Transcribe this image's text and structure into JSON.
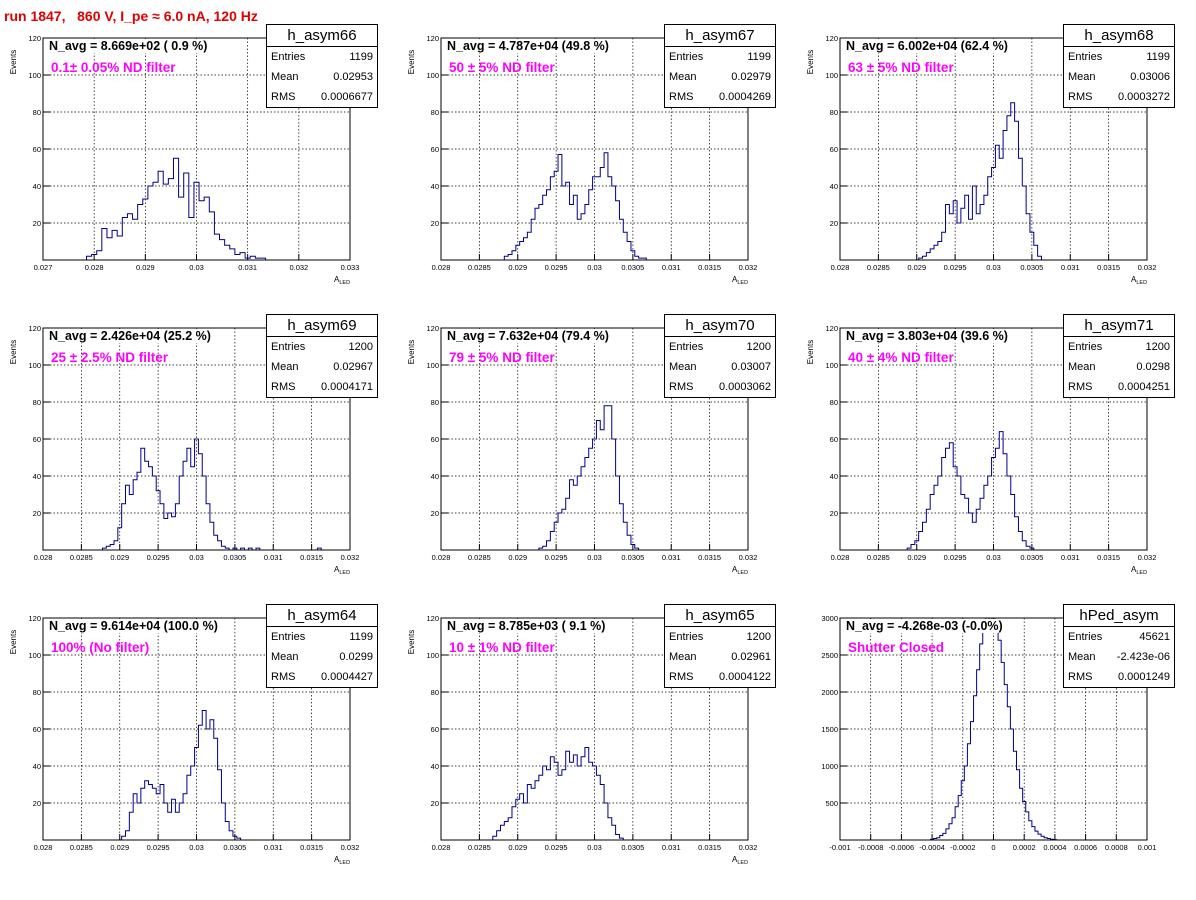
{
  "page_title": "run 1847,   860 V, I_pe ≈ 6.0 nA, 120 Hz",
  "stat_labels": {
    "entries": "Entries",
    "mean": "Mean",
    "rms": "RMS"
  },
  "panels": [
    {
      "hist_name": "h_asym66",
      "navg": "N_avg = 8.669e+02 ( 0.9 %)",
      "filter": "0.1± 0.05% ND filter",
      "entries": "1199",
      "mean": "0.02953",
      "rms": "0.0006677",
      "ylabel": "Events",
      "xlabel": "A",
      "xlabel_sub": "LED",
      "x_ticks": [
        "0.027",
        "0.028",
        "0.029",
        "0.03",
        "0.031",
        "0.032",
        "0.033"
      ],
      "y_ticks": [
        "20",
        "40",
        "60",
        "80",
        "100",
        "120"
      ]
    },
    {
      "hist_name": "h_asym67",
      "navg": "N_avg = 4.787e+04 (49.8 %)",
      "filter": "50 ± 5% ND filter",
      "entries": "1199",
      "mean": "0.02979",
      "rms": "0.0004269",
      "ylabel": "Events",
      "xlabel": "A",
      "xlabel_sub": "LED",
      "x_ticks": [
        "0.028",
        "0.0285",
        "0.029",
        "0.0295",
        "0.03",
        "0.0305",
        "0.031",
        "0.0315",
        "0.032"
      ],
      "y_ticks": [
        "20",
        "40",
        "60",
        "80",
        "100",
        "120"
      ]
    },
    {
      "hist_name": "h_asym68",
      "navg": "N_avg = 6.002e+04 (62.4 %)",
      "filter": "63 ± 5% ND filter",
      "entries": "1199",
      "mean": "0.03006",
      "rms": "0.0003272",
      "ylabel": "Events",
      "xlabel": "A",
      "xlabel_sub": "LED",
      "x_ticks": [
        "0.028",
        "0.0285",
        "0.029",
        "0.0295",
        "0.03",
        "0.0305",
        "0.031",
        "0.0315",
        "0.032"
      ],
      "y_ticks": [
        "20",
        "40",
        "60",
        "80",
        "100",
        "120"
      ]
    },
    {
      "hist_name": "h_asym69",
      "navg": "N_avg = 2.426e+04 (25.2 %)",
      "filter": "25 ± 2.5% ND filter",
      "entries": "1200",
      "mean": "0.02967",
      "rms": "0.0004171",
      "ylabel": "Events",
      "xlabel": "A",
      "xlabel_sub": "LED",
      "x_ticks": [
        "0.028",
        "0.0285",
        "0.029",
        "0.0295",
        "0.03",
        "0.0305",
        "0.031",
        "0.0315",
        "0.032"
      ],
      "y_ticks": [
        "20",
        "40",
        "60",
        "80",
        "100",
        "120"
      ]
    },
    {
      "hist_name": "h_asym70",
      "navg": "N_avg = 7.632e+04 (79.4 %)",
      "filter": "79 ± 5% ND filter",
      "entries": "1200",
      "mean": "0.03007",
      "rms": "0.0003062",
      "ylabel": "Events",
      "xlabel": "A",
      "xlabel_sub": "LED",
      "x_ticks": [
        "0.028",
        "0.0285",
        "0.029",
        "0.0295",
        "0.03",
        "0.0305",
        "0.031",
        "0.0315",
        "0.032"
      ],
      "y_ticks": [
        "20",
        "40",
        "60",
        "80",
        "100",
        "120"
      ]
    },
    {
      "hist_name": "h_asym71",
      "navg": "N_avg = 3.803e+04 (39.6 %)",
      "filter": "40 ± 4% ND filter",
      "entries": "1200",
      "mean": "0.0298",
      "rms": "0.0004251",
      "ylabel": "Events",
      "xlabel": "A",
      "xlabel_sub": "LED",
      "x_ticks": [
        "0.028",
        "0.0285",
        "0.029",
        "0.0295",
        "0.03",
        "0.0305",
        "0.031",
        "0.0315",
        "0.032"
      ],
      "y_ticks": [
        "20",
        "40",
        "60",
        "80",
        "100",
        "120"
      ]
    },
    {
      "hist_name": "h_asym64",
      "navg": "N_avg = 9.614e+04 (100.0 %)",
      "filter": "100% (No filter)",
      "entries": "1199",
      "mean": "0.0299",
      "rms": "0.0004427",
      "ylabel": "Events",
      "xlabel": "A",
      "xlabel_sub": "LED",
      "x_ticks": [
        "0.028",
        "0.0285",
        "0.029",
        "0.0295",
        "0.03",
        "0.0305",
        "0.031",
        "0.0315",
        "0.032"
      ],
      "y_ticks": [
        "20",
        "40",
        "60",
        "80",
        "100",
        "120"
      ]
    },
    {
      "hist_name": "h_asym65",
      "navg": "N_avg = 8.785e+03 ( 9.1 %)",
      "filter": "10 ± 1% ND filter",
      "entries": "1200",
      "mean": "0.02961",
      "rms": "0.0004122",
      "ylabel": "Events",
      "xlabel": "A",
      "xlabel_sub": "LED",
      "x_ticks": [
        "0.028",
        "0.0285",
        "0.029",
        "0.0295",
        "0.03",
        "0.0305",
        "0.031",
        "0.0315",
        "0.032"
      ],
      "y_ticks": [
        "20",
        "40",
        "60",
        "80",
        "100",
        "120"
      ]
    },
    {
      "hist_name": "hPed_asym",
      "navg": "N_avg = -4.268e-03 (-0.0%)",
      "filter": "Shutter Closed",
      "entries": "45621",
      "mean": "-2.423e-06",
      "rms": "0.0001249",
      "ylabel": "",
      "xlabel": "",
      "xlabel_sub": "",
      "x_ticks": [
        "-0.001",
        "-0.0008",
        "-0.0006",
        "-0.0004",
        "-0.0002",
        "0",
        "0.0002",
        "0.0004",
        "0.0006",
        "0.0008",
        "0.001"
      ],
      "y_ticks": [
        "500",
        "1000",
        "1500",
        "2000",
        "2500",
        "3000"
      ]
    }
  ],
  "chart_data": [
    {
      "type": "bar",
      "title": "h_asym66",
      "xlabel": "A_LED",
      "ylabel": "Events",
      "xlim": [
        0.027,
        0.033
      ],
      "ylim": [
        0,
        120
      ],
      "bin_width": 0.0001,
      "grid": true,
      "legend": "top-right",
      "x": [
        0.0279,
        0.028,
        0.0281,
        0.0282,
        0.0283,
        0.0284,
        0.0285,
        0.0286,
        0.0287,
        0.0288,
        0.0289,
        0.029,
        0.0291,
        0.0292,
        0.0293,
        0.0294,
        0.0295,
        0.0296,
        0.0297,
        0.0298,
        0.0299,
        0.03,
        0.0301,
        0.0302,
        0.0303,
        0.0304,
        0.0305,
        0.0306,
        0.0307,
        0.0308,
        0.0309,
        0.031,
        0.0311,
        0.0312,
        0.0313
      ],
      "values": [
        2,
        3,
        5,
        17,
        12,
        16,
        13,
        23,
        25,
        22,
        30,
        33,
        40,
        42,
        48,
        41,
        44,
        55,
        34,
        47,
        23,
        42,
        32,
        34,
        26,
        14,
        11,
        8,
        6,
        3,
        4,
        1,
        2,
        1,
        1
      ]
    },
    {
      "type": "bar",
      "title": "h_asym67",
      "xlabel": "A_LED",
      "ylabel": "Events",
      "xlim": [
        0.028,
        0.032
      ],
      "ylim": [
        0,
        120
      ],
      "bin_width": 5e-05,
      "grid": true,
      "legend": "top-right",
      "x": [
        0.02885,
        0.0289,
        0.02895,
        0.029,
        0.02905,
        0.0291,
        0.02915,
        0.0292,
        0.02925,
        0.0293,
        0.02935,
        0.0294,
        0.02945,
        0.0295,
        0.02955,
        0.0296,
        0.02965,
        0.0297,
        0.02975,
        0.0298,
        0.02985,
        0.0299,
        0.02995,
        0.03,
        0.03005,
        0.0301,
        0.03015,
        0.0302,
        0.03025,
        0.0303,
        0.03035,
        0.0304,
        0.03045,
        0.0305,
        0.03055,
        0.0306,
        0.03065
      ],
      "values": [
        2,
        3,
        5,
        8,
        10,
        12,
        15,
        22,
        28,
        30,
        35,
        38,
        45,
        48,
        57,
        40,
        42,
        30,
        35,
        22,
        25,
        30,
        38,
        45,
        45,
        50,
        58,
        45,
        40,
        32,
        22,
        15,
        10,
        5,
        2,
        1,
        1
      ]
    },
    {
      "type": "bar",
      "title": "h_asym68",
      "xlabel": "A_LED",
      "ylabel": "Events",
      "xlim": [
        0.028,
        0.032
      ],
      "ylim": [
        0,
        120
      ],
      "bin_width": 5e-05,
      "grid": true,
      "legend": "top-right",
      "x": [
        0.02905,
        0.0291,
        0.02915,
        0.0292,
        0.02925,
        0.0293,
        0.02935,
        0.0294,
        0.02945,
        0.0295,
        0.02955,
        0.0296,
        0.02965,
        0.0297,
        0.02975,
        0.0298,
        0.02985,
        0.0299,
        0.02995,
        0.03,
        0.03005,
        0.0301,
        0.03015,
        0.0302,
        0.03025,
        0.0303,
        0.03035,
        0.0304,
        0.03045,
        0.0305,
        0.03055,
        0.0306
      ],
      "values": [
        1,
        2,
        4,
        6,
        8,
        10,
        15,
        30,
        25,
        32,
        20,
        28,
        35,
        22,
        40,
        25,
        30,
        35,
        45,
        50,
        62,
        55,
        70,
        78,
        85,
        75,
        55,
        40,
        25,
        15,
        8,
        2
      ]
    },
    {
      "type": "bar",
      "title": "h_asym69",
      "xlabel": "A_LED",
      "ylabel": "Events",
      "xlim": [
        0.028,
        0.032
      ],
      "ylim": [
        0,
        120
      ],
      "bin_width": 5e-05,
      "grid": true,
      "legend": "top-right",
      "x": [
        0.0288,
        0.02885,
        0.0289,
        0.02895,
        0.029,
        0.02905,
        0.0291,
        0.02915,
        0.0292,
        0.02925,
        0.0293,
        0.02935,
        0.0294,
        0.02945,
        0.0295,
        0.02955,
        0.0296,
        0.02965,
        0.0297,
        0.02975,
        0.0298,
        0.02985,
        0.0299,
        0.02995,
        0.03,
        0.03005,
        0.0301,
        0.03015,
        0.0302,
        0.03025,
        0.0303,
        0.03035,
        0.0304,
        0.0305,
        0.0306,
        0.0307,
        0.0308,
        0.0316
      ],
      "values": [
        1,
        2,
        3,
        5,
        12,
        25,
        35,
        30,
        38,
        42,
        55,
        48,
        45,
        40,
        32,
        25,
        17,
        20,
        18,
        25,
        40,
        48,
        55,
        45,
        60,
        52,
        40,
        25,
        15,
        8,
        5,
        2,
        1,
        1,
        1,
        1,
        1,
        1
      ]
    },
    {
      "type": "bar",
      "title": "h_asym70",
      "xlabel": "A_LED",
      "ylabel": "Events",
      "xlim": [
        0.028,
        0.032
      ],
      "ylim": [
        0,
        120
      ],
      "bin_width": 5e-05,
      "grid": true,
      "legend": "top-right",
      "x": [
        0.0293,
        0.02935,
        0.0294,
        0.02945,
        0.0295,
        0.02955,
        0.0296,
        0.02965,
        0.0297,
        0.02975,
        0.0298,
        0.02985,
        0.0299,
        0.02995,
        0.03,
        0.03005,
        0.0301,
        0.03015,
        0.0302,
        0.03025,
        0.0303,
        0.03035,
        0.0304,
        0.03045,
        0.0305,
        0.03055
      ],
      "values": [
        1,
        2,
        5,
        10,
        15,
        20,
        22,
        28,
        38,
        35,
        40,
        45,
        50,
        55,
        60,
        70,
        65,
        78,
        78,
        60,
        40,
        25,
        15,
        8,
        3,
        1
      ]
    },
    {
      "type": "bar",
      "title": "h_asym71",
      "xlabel": "A_LED",
      "ylabel": "Events",
      "xlim": [
        0.028,
        0.032
      ],
      "ylim": [
        0,
        120
      ],
      "bin_width": 5e-05,
      "grid": true,
      "legend": "top-right",
      "x": [
        0.0289,
        0.02895,
        0.029,
        0.02905,
        0.0291,
        0.02915,
        0.0292,
        0.02925,
        0.0293,
        0.02935,
        0.0294,
        0.02945,
        0.0295,
        0.02955,
        0.0296,
        0.02965,
        0.0297,
        0.02975,
        0.0298,
        0.02985,
        0.0299,
        0.02995,
        0.03,
        0.03005,
        0.0301,
        0.03015,
        0.0302,
        0.03025,
        0.0303,
        0.03035,
        0.0304,
        0.03045,
        0.0305
      ],
      "values": [
        1,
        3,
        5,
        10,
        15,
        22,
        30,
        35,
        40,
        50,
        55,
        58,
        45,
        40,
        30,
        28,
        20,
        15,
        22,
        28,
        35,
        40,
        50,
        55,
        64,
        52,
        40,
        30,
        18,
        10,
        5,
        2,
        1
      ]
    },
    {
      "type": "bar",
      "title": "h_asym64",
      "xlabel": "A_LED",
      "ylabel": "Events",
      "xlim": [
        0.028,
        0.032
      ],
      "ylim": [
        0,
        120
      ],
      "bin_width": 5e-05,
      "grid": true,
      "legend": "top-right",
      "x": [
        0.02905,
        0.0291,
        0.02915,
        0.0292,
        0.02925,
        0.0293,
        0.02935,
        0.0294,
        0.02945,
        0.0295,
        0.02955,
        0.0296,
        0.02965,
        0.0297,
        0.02975,
        0.0298,
        0.02985,
        0.0299,
        0.02995,
        0.03,
        0.03005,
        0.0301,
        0.03015,
        0.0302,
        0.03025,
        0.0303,
        0.03035,
        0.0304,
        0.03045,
        0.0305,
        0.03055
      ],
      "values": [
        2,
        5,
        15,
        25,
        20,
        28,
        32,
        30,
        28,
        25,
        30,
        20,
        15,
        22,
        15,
        20,
        25,
        35,
        40,
        50,
        62,
        70,
        60,
        65,
        55,
        38,
        20,
        10,
        5,
        2,
        1
      ]
    },
    {
      "type": "bar",
      "title": "h_asym65",
      "xlabel": "A_LED",
      "ylabel": "Events",
      "xlim": [
        0.028,
        0.032
      ],
      "ylim": [
        0,
        120
      ],
      "bin_width": 5e-05,
      "grid": true,
      "legend": "top-right",
      "x": [
        0.0287,
        0.02875,
        0.0288,
        0.02885,
        0.0289,
        0.02895,
        0.029,
        0.02905,
        0.0291,
        0.02915,
        0.0292,
        0.02925,
        0.0293,
        0.02935,
        0.0294,
        0.02945,
        0.0295,
        0.02955,
        0.0296,
        0.02965,
        0.0297,
        0.02975,
        0.0298,
        0.02985,
        0.0299,
        0.02995,
        0.03,
        0.03005,
        0.0301,
        0.03015,
        0.0302,
        0.03025,
        0.0303,
        0.03035
      ],
      "values": [
        2,
        5,
        8,
        10,
        12,
        18,
        22,
        25,
        20,
        30,
        28,
        32,
        35,
        40,
        38,
        45,
        42,
        35,
        38,
        48,
        42,
        46,
        40,
        45,
        50,
        42,
        40,
        35,
        30,
        20,
        12,
        8,
        3,
        1
      ]
    },
    {
      "type": "bar",
      "title": "hPed_asym",
      "xlabel": "",
      "ylabel": "",
      "xlim": [
        -0.001,
        0.001
      ],
      "ylim": [
        0,
        3000
      ],
      "bin_width": 2e-05,
      "grid": true,
      "legend": "top-right",
      "x": [
        -0.0004,
        -0.00038,
        -0.00036,
        -0.00034,
        -0.00032,
        -0.0003,
        -0.00028,
        -0.00026,
        -0.00024,
        -0.00022,
        -0.0002,
        -0.00018,
        -0.00016,
        -0.00014,
        -0.00012,
        -0.0001,
        -8e-05,
        -6e-05,
        -4e-05,
        -2e-05,
        0,
        2e-05,
        4e-05,
        6e-05,
        8e-05,
        0.0001,
        0.00012,
        0.00014,
        0.00016,
        0.00018,
        0.0002,
        0.00022,
        0.00024,
        0.00026,
        0.00028,
        0.0003,
        0.00032,
        0.00034,
        0.00036,
        0.00038,
        0.0004
      ],
      "values": [
        10,
        20,
        30,
        60,
        90,
        150,
        220,
        300,
        450,
        600,
        800,
        1000,
        1300,
        1600,
        1950,
        2300,
        2650,
        2900,
        3000,
        2950,
        3000,
        2900,
        2700,
        2400,
        2100,
        1800,
        1500,
        1200,
        950,
        700,
        520,
        380,
        260,
        180,
        120,
        80,
        50,
        30,
        20,
        10,
        5
      ]
    }
  ]
}
